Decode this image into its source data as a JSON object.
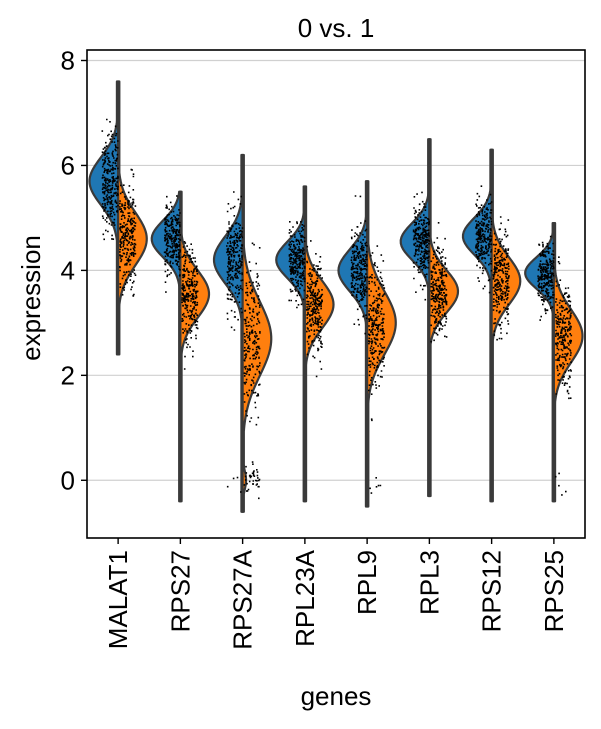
{
  "chart_data": {
    "type": "violin",
    "title": "0 vs. 1",
    "xlabel": "genes",
    "ylabel": "expression",
    "ylim": [
      -1.1,
      8.2
    ],
    "yticks": [
      0,
      2,
      4,
      6,
      8
    ],
    "grid": "horizontal",
    "split": true,
    "categories": [
      "MALAT1",
      "RPS27",
      "RPS27A",
      "RPL23A",
      "RPL9",
      "RPL3",
      "RPS12",
      "RPS25"
    ],
    "series": [
      {
        "name": "0",
        "color": "#1f77b4",
        "side": "left",
        "distributions": [
          {
            "gene": "MALAT1",
            "min": 2.4,
            "max": 7.6,
            "modes": [
              {
                "center": 5.7,
                "sd": 0.45,
                "weight": 1.0
              }
            ]
          },
          {
            "gene": "RPS27",
            "min": -0.4,
            "max": 5.5,
            "modes": [
              {
                "center": 4.6,
                "sd": 0.35,
                "weight": 1.0
              }
            ]
          },
          {
            "gene": "RPS27A",
            "min": -0.6,
            "max": 6.2,
            "modes": [
              {
                "center": 4.2,
                "sd": 0.45,
                "weight": 1.0
              },
              {
                "center": 0.0,
                "sd": 0.15,
                "weight": 0.02
              }
            ]
          },
          {
            "gene": "RPL23A",
            "min": -0.4,
            "max": 5.6,
            "modes": [
              {
                "center": 4.2,
                "sd": 0.35,
                "weight": 1.0
              }
            ]
          },
          {
            "gene": "RPL9",
            "min": -0.5,
            "max": 5.7,
            "modes": [
              {
                "center": 4.0,
                "sd": 0.4,
                "weight": 1.0
              }
            ]
          },
          {
            "gene": "RPL3",
            "min": -0.3,
            "max": 6.5,
            "modes": [
              {
                "center": 4.55,
                "sd": 0.35,
                "weight": 1.0
              }
            ]
          },
          {
            "gene": "RPS12",
            "min": -0.4,
            "max": 6.3,
            "modes": [
              {
                "center": 4.65,
                "sd": 0.35,
                "weight": 1.0
              }
            ]
          },
          {
            "gene": "RPS25",
            "min": -0.4,
            "max": 4.9,
            "modes": [
              {
                "center": 3.95,
                "sd": 0.3,
                "weight": 1.0
              }
            ]
          }
        ]
      },
      {
        "name": "1",
        "color": "#ff7f0e",
        "side": "right",
        "distributions": [
          {
            "gene": "MALAT1",
            "min": 2.4,
            "max": 7.6,
            "modes": [
              {
                "center": 4.6,
                "sd": 0.5,
                "weight": 1.0
              }
            ]
          },
          {
            "gene": "RPS27",
            "min": -0.4,
            "max": 5.5,
            "modes": [
              {
                "center": 3.55,
                "sd": 0.45,
                "weight": 1.0
              }
            ]
          },
          {
            "gene": "RPS27A",
            "min": -0.6,
            "max": 6.2,
            "modes": [
              {
                "center": 2.7,
                "sd": 0.7,
                "weight": 1.0
              },
              {
                "center": 0.0,
                "sd": 0.18,
                "weight": 0.12
              }
            ]
          },
          {
            "gene": "RPL23A",
            "min": -0.4,
            "max": 5.6,
            "modes": [
              {
                "center": 3.35,
                "sd": 0.45,
                "weight": 1.0
              }
            ]
          },
          {
            "gene": "RPL9",
            "min": -0.5,
            "max": 5.7,
            "modes": [
              {
                "center": 3.0,
                "sd": 0.6,
                "weight": 1.0
              },
              {
                "center": 0.0,
                "sd": 0.15,
                "weight": 0.04
              }
            ]
          },
          {
            "gene": "RPL3",
            "min": -0.3,
            "max": 6.5,
            "modes": [
              {
                "center": 3.6,
                "sd": 0.4,
                "weight": 1.0
              }
            ]
          },
          {
            "gene": "RPS12",
            "min": -0.4,
            "max": 6.3,
            "modes": [
              {
                "center": 3.8,
                "sd": 0.45,
                "weight": 1.0
              }
            ]
          },
          {
            "gene": "RPS25",
            "min": -0.4,
            "max": 4.9,
            "modes": [
              {
                "center": 2.75,
                "sd": 0.5,
                "weight": 1.0
              },
              {
                "center": 0.0,
                "sd": 0.15,
                "weight": 0.03
              }
            ]
          }
        ]
      }
    ]
  }
}
